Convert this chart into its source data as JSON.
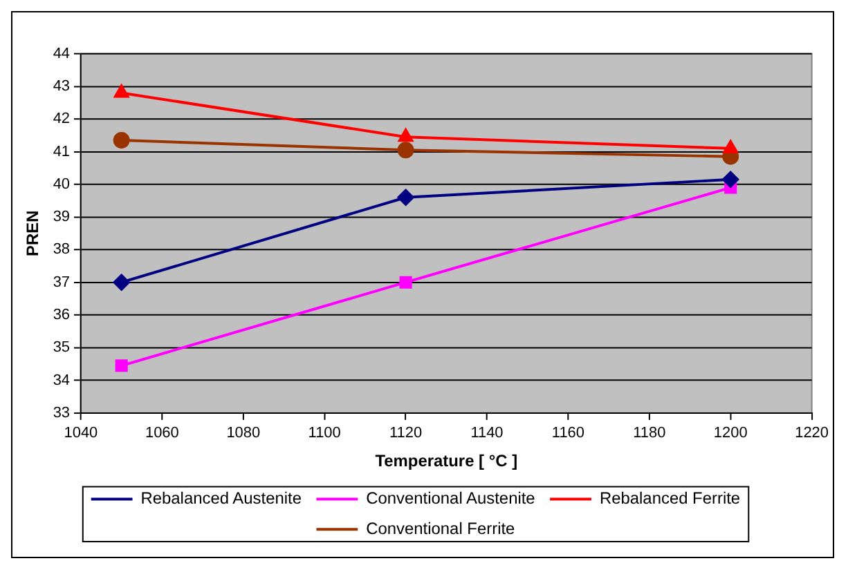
{
  "chart_data": {
    "type": "line",
    "xlabel": "Temperature [ °C ]",
    "ylabel": "PREN",
    "x": [
      1050,
      1120,
      1200
    ],
    "series": [
      {
        "name": "Rebalanced Austenite",
        "color": "#000080",
        "marker": "diamond",
        "values": [
          37.0,
          39.6,
          40.15
        ]
      },
      {
        "name": "Conventional Austenite",
        "color": "#ff00ff",
        "marker": "square",
        "values": [
          34.45,
          37.0,
          39.9
        ]
      },
      {
        "name": "Rebalanced Ferrite",
        "color": "#ff0000",
        "marker": "triangle",
        "values": [
          42.8,
          41.45,
          41.1
        ]
      },
      {
        "name": "Conventional Ferrite",
        "color": "#993300",
        "marker": "circle",
        "values": [
          41.35,
          41.05,
          40.85
        ]
      }
    ],
    "xlim": [
      1040,
      1220
    ],
    "xticks": [
      1040,
      1060,
      1080,
      1100,
      1120,
      1140,
      1160,
      1180,
      1200,
      1220
    ],
    "ylim": [
      33,
      44
    ],
    "yticks": [
      33,
      34,
      35,
      36,
      37,
      38,
      39,
      40,
      41,
      42,
      43,
      44
    ],
    "grid": "y",
    "legend": "bottom",
    "line_style": "solid"
  }
}
